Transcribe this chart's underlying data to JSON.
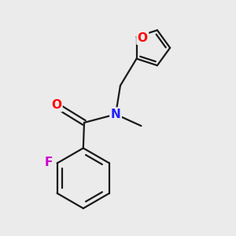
{
  "background_color": "#ebebeb",
  "bond_color": "#1a1a1a",
  "bond_width": 1.6,
  "atom_colors": {
    "O": "#ff0000",
    "N": "#2020ff",
    "F": "#cc00cc"
  },
  "font_size_atoms": 10.5,
  "figsize": [
    3.0,
    3.0
  ],
  "dpi": 100
}
